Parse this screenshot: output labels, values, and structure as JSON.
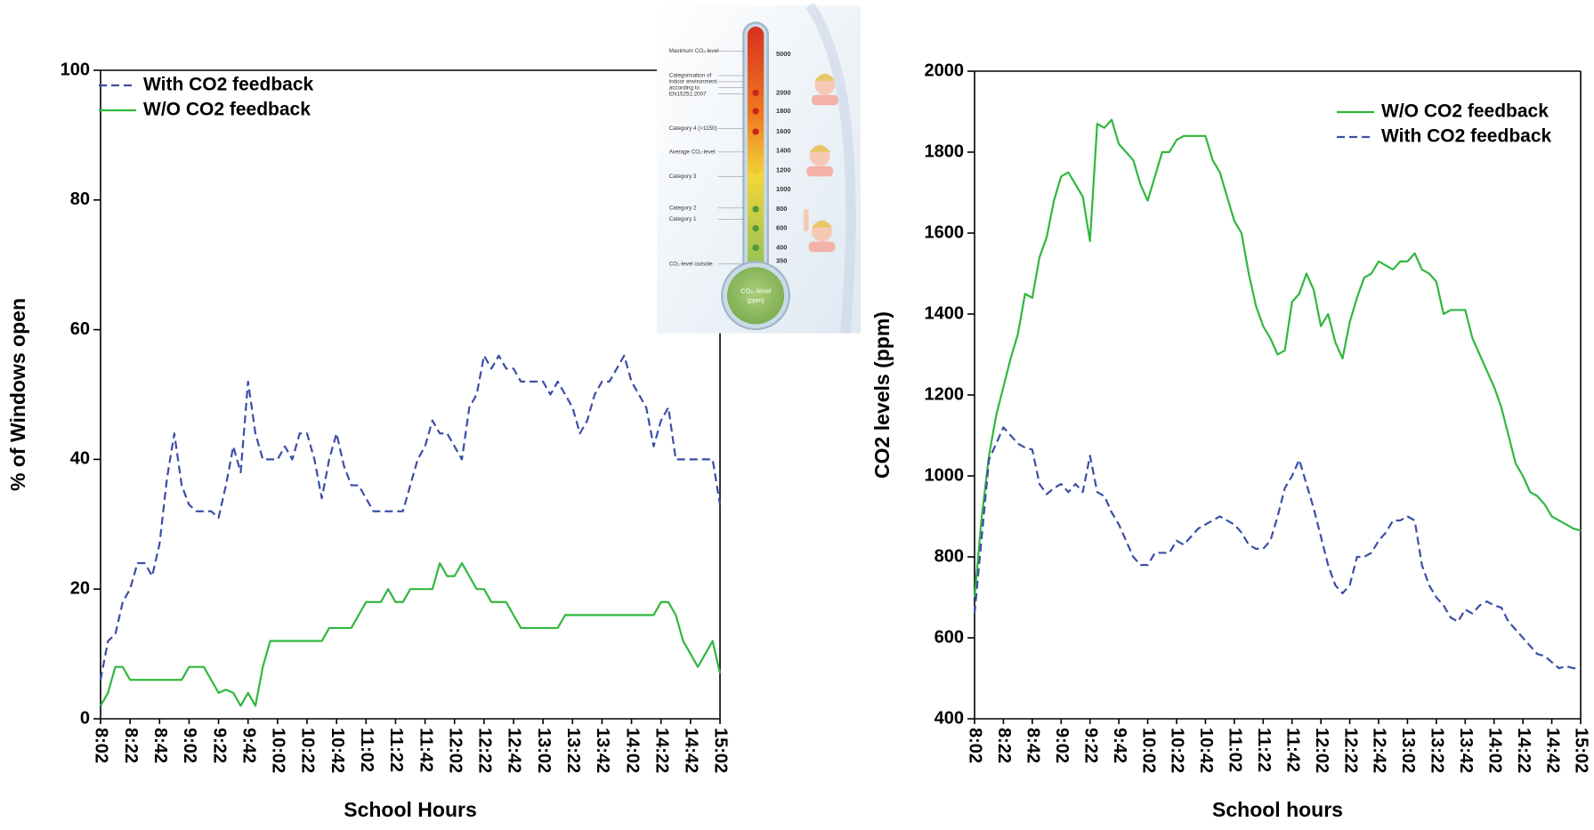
{
  "chart_data": [
    {
      "type": "line",
      "x_label": "School Hours",
      "y_label": "% of Windows open",
      "categories": [
        "8:02",
        null,
        null,
        null,
        "8:22",
        null,
        null,
        null,
        "8:42",
        null,
        null,
        null,
        "9:02",
        null,
        null,
        null,
        "9:22",
        null,
        null,
        null,
        "9:42",
        null,
        null,
        null,
        "10:02",
        null,
        null,
        null,
        "10:22",
        null,
        null,
        null,
        "10:42",
        null,
        null,
        null,
        "11:02",
        null,
        null,
        null,
        "11:22",
        null,
        null,
        null,
        "11:42",
        null,
        null,
        null,
        "12:02",
        null,
        null,
        null,
        "12:22",
        null,
        null,
        null,
        "12:42",
        null,
        null,
        null,
        "13:02",
        null,
        null,
        null,
        "13:22",
        null,
        null,
        null,
        "13:42",
        null,
        null,
        null,
        "14:02",
        null,
        null,
        null,
        "14:22",
        null,
        null,
        null,
        "14:42",
        null,
        null,
        null,
        "15:02"
      ],
      "ylim": [
        0,
        100
      ],
      "yticks": [
        0,
        20,
        40,
        60,
        80,
        100
      ],
      "legend": "upper left",
      "series": [
        {
          "name": "With CO2 feedback",
          "color": "#3b4ea6",
          "line_style": "dashed",
          "values": [
            6,
            12,
            13,
            18,
            20,
            24,
            24,
            22,
            27,
            37,
            44,
            36,
            33,
            32,
            32,
            32,
            31,
            36,
            42,
            38,
            52,
            44,
            40,
            40,
            40,
            42,
            40,
            44,
            44,
            40,
            34,
            40,
            44,
            39,
            36,
            36,
            34,
            32,
            32,
            32,
            32,
            32,
            36,
            40,
            42,
            46,
            44,
            44,
            42,
            40,
            48,
            50,
            56,
            54,
            56,
            54,
            54,
            52,
            52,
            52,
            52,
            50,
            52,
            50,
            48,
            44,
            46,
            50,
            52,
            52,
            54,
            56,
            52,
            50,
            48,
            42,
            46,
            48,
            40,
            40,
            40,
            40,
            40,
            40,
            33
          ]
        },
        {
          "name": "W/O CO2 feedback",
          "color": "#2fb83e",
          "line_style": "solid",
          "values": [
            2,
            4,
            8,
            8,
            6,
            6,
            6,
            6,
            6,
            6,
            6,
            6,
            8,
            8,
            8,
            6,
            4,
            4.5,
            4,
            2,
            4,
            2,
            8,
            12,
            12,
            12,
            12,
            12,
            12,
            12,
            12,
            14,
            14,
            14,
            14,
            16,
            18,
            18,
            18,
            20,
            18,
            18,
            20,
            20,
            20,
            20,
            24,
            22,
            22,
            24,
            22,
            20,
            20,
            18,
            18,
            18,
            16,
            14,
            14,
            14,
            14,
            14,
            14,
            16,
            16,
            16,
            16,
            16,
            16,
            16,
            16,
            16,
            16,
            16,
            16,
            16,
            18,
            18,
            16,
            12,
            10,
            8,
            10,
            12,
            7
          ]
        }
      ]
    },
    {
      "type": "line",
      "x_label": "School hours",
      "y_label": "CO2 levels (ppm)",
      "categories": [
        "8:02",
        null,
        null,
        null,
        "8:22",
        null,
        null,
        null,
        "8:42",
        null,
        null,
        null,
        "9:02",
        null,
        null,
        null,
        "9:22",
        null,
        null,
        null,
        "9:42",
        null,
        null,
        null,
        "10:02",
        null,
        null,
        null,
        "10:22",
        null,
        null,
        null,
        "10:42",
        null,
        null,
        null,
        "11:02",
        null,
        null,
        null,
        "11:22",
        null,
        null,
        null,
        "11:42",
        null,
        null,
        null,
        "12:02",
        null,
        null,
        null,
        "12:22",
        null,
        null,
        null,
        "12:42",
        null,
        null,
        null,
        "13:02",
        null,
        null,
        null,
        "13:22",
        null,
        null,
        null,
        "13:42",
        null,
        null,
        null,
        "14:02",
        null,
        null,
        null,
        "14:22",
        null,
        null,
        null,
        "14:42",
        null,
        null,
        null,
        "15:02"
      ],
      "ylim": [
        400,
        2000
      ],
      "yticks": [
        400,
        600,
        800,
        1000,
        1200,
        1400,
        1600,
        1800,
        2000
      ],
      "legend": "upper right",
      "series": [
        {
          "name": "W/O CO2 feedback",
          "color": "#2fb83e",
          "line_style": "solid",
          "values": [
            700,
            900,
            1050,
            1150,
            1220,
            1290,
            1350,
            1450,
            1440,
            1540,
            1590,
            1680,
            1740,
            1750,
            1720,
            1690,
            1580,
            1870,
            1860,
            1880,
            1820,
            1800,
            1780,
            1720,
            1680,
            1740,
            1800,
            1800,
            1830,
            1840,
            1840,
            1840,
            1840,
            1780,
            1750,
            1690,
            1630,
            1600,
            1500,
            1420,
            1370,
            1340,
            1300,
            1310,
            1430,
            1450,
            1500,
            1460,
            1370,
            1400,
            1330,
            1290,
            1380,
            1440,
            1490,
            1500,
            1530,
            1520,
            1510,
            1530,
            1530,
            1550,
            1510,
            1500,
            1480,
            1400,
            1410,
            1410,
            1410,
            1340,
            1300,
            1260,
            1220,
            1170,
            1100,
            1030,
            1000,
            960,
            950,
            930,
            900,
            890,
            880,
            870,
            865
          ]
        },
        {
          "name": "With CO2 feedback",
          "color": "#3b4ea6",
          "line_style": "dashed",
          "values": [
            660,
            850,
            1040,
            1080,
            1120,
            1100,
            1080,
            1070,
            1065,
            980,
            955,
            970,
            980,
            960,
            980,
            960,
            1050,
            960,
            950,
            910,
            880,
            840,
            800,
            780,
            780,
            810,
            810,
            810,
            840,
            830,
            850,
            870,
            880,
            890,
            900,
            890,
            880,
            860,
            830,
            820,
            820,
            840,
            900,
            970,
            1000,
            1040,
            980,
            920,
            850,
            780,
            730,
            710,
            730,
            800,
            800,
            810,
            840,
            860,
            890,
            890,
            900,
            890,
            780,
            730,
            700,
            680,
            650,
            640,
            670,
            660,
            680,
            690,
            680,
            675,
            640,
            620,
            600,
            580,
            560,
            555,
            540,
            525,
            530,
            525,
            525
          ]
        }
      ]
    }
  ],
  "inset": {
    "labels": [
      "Maximum CO₂-level",
      "Categorisation of",
      "indoor environment",
      "according to",
      "EN15251:2007",
      "Category 4 (>1150)",
      "Average CO₂-level",
      "Category 3",
      "Category 2",
      "Category 1",
      "CO₂-level outside"
    ],
    "scale": [
      "5000",
      "2000",
      "1800",
      "1600",
      "1400",
      "1200",
      "1000",
      "800",
      "600",
      "400",
      "350"
    ],
    "bulb_label": [
      "CO₂ -level",
      "(ppm)"
    ]
  }
}
